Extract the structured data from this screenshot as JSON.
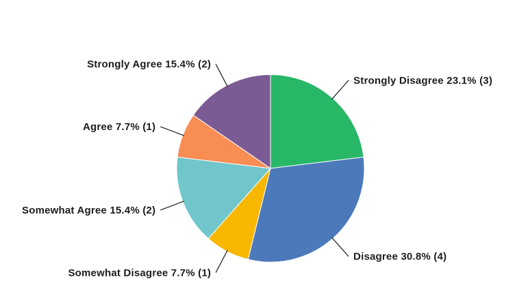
{
  "chart_data": {
    "type": "pie",
    "title": "",
    "categories": [
      "Strongly Disagree",
      "Disagree",
      "Somewhat Disagree",
      "Somewhat Agree",
      "Agree",
      "Strongly Agree"
    ],
    "values": [
      3,
      4,
      1,
      2,
      1,
      2
    ],
    "percents": [
      23.1,
      30.8,
      7.7,
      15.4,
      7.7,
      15.4
    ],
    "labels": [
      "Strongly Disagree 23.1% (3)",
      "Disagree 30.8% (4)",
      "Somewhat Disagree 7.7% (1)",
      "Somewhat Agree 15.4% (2)",
      "Agree 7.7% (1)",
      "Strongly Agree 15.4% (2)"
    ],
    "colors": [
      "#27b767",
      "#4c79ba",
      "#f8b700",
      "#70c6cb",
      "#f98e54",
      "#7a5b94"
    ],
    "slice_border_color": "#ffffff",
    "leader_line_color": "#1c1c1c",
    "start_angle": "top",
    "direction": "clockwise",
    "legend_position": "none",
    "label_style": "outside-with-leader-lines"
  }
}
